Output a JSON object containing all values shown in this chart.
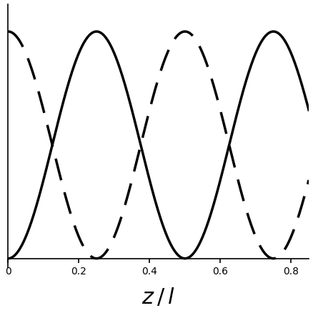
{
  "x_min": 0.0,
  "x_max": 0.85,
  "x_ticks": [
    0,
    0.2,
    0.4,
    0.6,
    0.8
  ],
  "x_ticklabels": [
    "0",
    "0.2",
    "0.4",
    "0.6",
    "0.8"
  ],
  "xlabel": "$z\\,/\\,l$",
  "xlabel_fontsize": 22,
  "n_periods": 1.0,
  "line_color": "#000000",
  "linewidth_solid": 2.5,
  "linewidth_dashed": 2.5,
  "dash_on": 9,
  "dash_off": 5,
  "figsize": [
    4.39,
    4.39
  ],
  "dpi": 100,
  "spine_linewidth": 1.2,
  "y_min": -0.04,
  "y_max": 1.12,
  "background": "#ffffff",
  "tick_fontsize": 14
}
